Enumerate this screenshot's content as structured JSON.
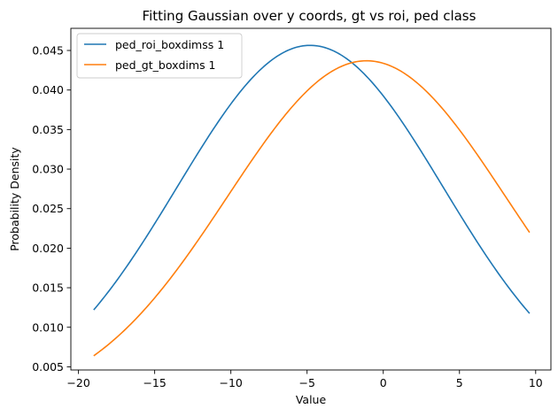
{
  "chart_data": {
    "type": "line",
    "title": "Fitting Gaussian over y coords, gt vs roi, ped class",
    "xlabel": "Value",
    "ylabel": "Probability Density",
    "xlim": [
      -20.5,
      11.0
    ],
    "ylim": [
      0.0046,
      0.0478
    ],
    "x_ticks": [
      -20,
      -15,
      -10,
      -5,
      0,
      5,
      10
    ],
    "x_tick_labels": [
      "−20",
      "−15",
      "−10",
      "−5",
      "0",
      "5",
      "10"
    ],
    "y_ticks": [
      0.005,
      0.01,
      0.015,
      0.02,
      0.025,
      0.03,
      0.035,
      0.04,
      0.045
    ],
    "y_tick_labels": [
      "0.005",
      "0.010",
      "0.015",
      "0.020",
      "0.025",
      "0.030",
      "0.035",
      "0.040",
      "0.045"
    ],
    "grid": false,
    "legend_position": "top-left",
    "x_range": [
      -19.0,
      9.6
    ],
    "series": [
      {
        "name": "ped_roi_boxdimss 1",
        "color": "#1f77b4",
        "distribution": "gaussian",
        "mean": -4.8,
        "std": 8.74,
        "x": [
          -19.0,
          -15.0,
          -10.0,
          -5.0,
          -4.8,
          0.0,
          5.0,
          9.6
        ],
        "values": [
          0.0123,
          0.0233,
          0.0382,
          0.0456,
          0.0456,
          0.0394,
          0.0243,
          0.0114
        ]
      },
      {
        "name": "ped_gt_boxdims 1",
        "color": "#ff7f0e",
        "distribution": "gaussian",
        "mean": -1.1,
        "std": 9.13,
        "x": [
          -19.0,
          -15.0,
          -10.0,
          -5.0,
          -1.1,
          0.0,
          5.0,
          9.6
        ],
        "values": [
          0.0064,
          0.0137,
          0.0271,
          0.0398,
          0.0437,
          0.0434,
          0.0351,
          0.022
        ]
      }
    ]
  }
}
